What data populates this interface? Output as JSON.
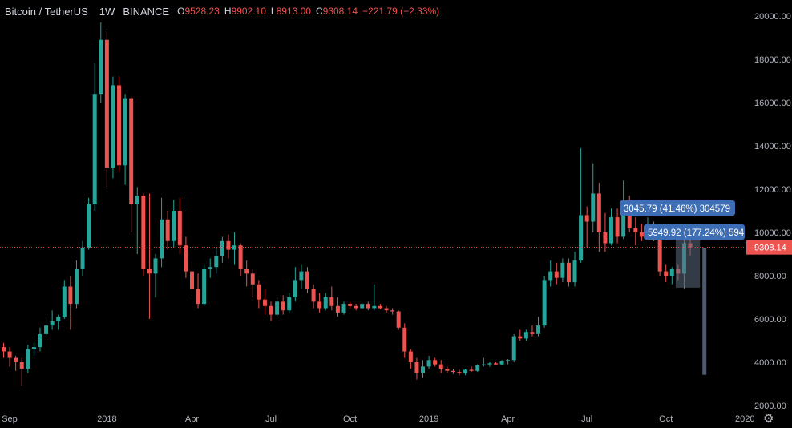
{
  "header": {
    "symbol": "Bitcoin / TetherUS",
    "interval": "1W",
    "exchange": "BINANCE",
    "open_label": "O",
    "open": "9528.23",
    "high_label": "H",
    "high": "9902.10",
    "low_label": "L",
    "low": "8913.00",
    "close_label": "C",
    "close": "9308.14",
    "change": "−221.79 (−2.33%)"
  },
  "colors": {
    "up": "#26a69a",
    "down": "#ef5350",
    "price_line": "#ef5350",
    "measure_label": "#3d6eb5",
    "measure_box": "#5b6b80",
    "axis_text": "#b2b5be"
  },
  "chart_data": {
    "type": "candlestick",
    "ylim": [
      2000,
      20000
    ],
    "y_ticks": [
      "2000.00",
      "4000.00",
      "6000.00",
      "8000.00",
      "10000.00",
      "12000.00",
      "14000.00",
      "16000.00",
      "18000.00",
      "20000.00"
    ],
    "x_ticks": [
      {
        "label": "Sep",
        "index": 0
      },
      {
        "label": "2018",
        "index": 17
      },
      {
        "label": "Apr",
        "index": 31
      },
      {
        "label": "Jul",
        "index": 44
      },
      {
        "label": "Oct",
        "index": 57
      },
      {
        "label": "2019",
        "index": 70
      },
      {
        "label": "Apr",
        "index": 83
      },
      {
        "label": "Jul",
        "index": 96
      },
      {
        "label": "Oct",
        "index": 109
      },
      {
        "label": "2020",
        "index": 122
      }
    ],
    "current_price": "9308.14",
    "candles": [
      [
        4700,
        4900,
        4200,
        4500
      ],
      [
        4500,
        4700,
        3800,
        4200
      ],
      [
        4200,
        4300,
        3600,
        4000
      ],
      [
        4000,
        4200,
        2900,
        3700
      ],
      [
        3700,
        4800,
        3500,
        4600
      ],
      [
        4600,
        4900,
        4300,
        4700
      ],
      [
        4700,
        5600,
        4500,
        5300
      ],
      [
        5300,
        6100,
        5200,
        5700
      ],
      [
        5700,
        6400,
        5500,
        5900
      ],
      [
        5900,
        6200,
        5500,
        6100
      ],
      [
        6100,
        7800,
        6000,
        7500
      ],
      [
        7500,
        8000,
        5500,
        6700
      ],
      [
        6700,
        8700,
        6500,
        8300
      ],
      [
        8300,
        9600,
        8000,
        9300
      ],
      [
        9300,
        11600,
        9200,
        11300
      ],
      [
        11300,
        17800,
        11000,
        16400
      ],
      [
        16400,
        19700,
        16000,
        18900
      ],
      [
        18900,
        19300,
        12000,
        13000
      ],
      [
        13000,
        17200,
        12500,
        16800
      ],
      [
        16800,
        17200,
        12800,
        13100
      ],
      [
        13100,
        16400,
        12200,
        16200
      ],
      [
        16200,
        16300,
        10000,
        11300
      ],
      [
        11300,
        12100,
        9000,
        11700
      ],
      [
        11700,
        11800,
        8000,
        8300
      ],
      [
        8300,
        11800,
        6000,
        8100
      ],
      [
        8100,
        9000,
        7000,
        8800
      ],
      [
        8800,
        11600,
        8400,
        10600
      ],
      [
        10600,
        11000,
        9200,
        9600
      ],
      [
        9600,
        11500,
        9300,
        11000
      ],
      [
        11000,
        11600,
        9000,
        9400
      ],
      [
        9400,
        9800,
        7900,
        8200
      ],
      [
        8200,
        8600,
        7100,
        7400
      ],
      [
        7400,
        8100,
        6500,
        6700
      ],
      [
        6700,
        8500,
        6600,
        8300
      ],
      [
        8300,
        8800,
        7900,
        8400
      ],
      [
        8400,
        9300,
        8100,
        8900
      ],
      [
        8900,
        9800,
        8600,
        9600
      ],
      [
        9600,
        9900,
        8800,
        9200
      ],
      [
        9200,
        10000,
        8500,
        9400
      ],
      [
        9400,
        9500,
        8000,
        8300
      ],
      [
        8300,
        8700,
        7500,
        8100
      ],
      [
        8100,
        8300,
        7000,
        7600
      ],
      [
        7600,
        7800,
        6500,
        6900
      ],
      [
        6900,
        7400,
        6200,
        6600
      ],
      [
        6600,
        6800,
        5900,
        6200
      ],
      [
        6200,
        7000,
        6100,
        6800
      ],
      [
        6800,
        7100,
        6200,
        6400
      ],
      [
        6400,
        7200,
        6300,
        7000
      ],
      [
        7000,
        8400,
        6800,
        7800
      ],
      [
        7800,
        8500,
        7400,
        8200
      ],
      [
        8200,
        8400,
        7200,
        7400
      ],
      [
        7400,
        7600,
        6500,
        6800
      ],
      [
        6800,
        7200,
        6300,
        6500
      ],
      [
        6500,
        7200,
        6400,
        7000
      ],
      [
        7000,
        7500,
        6400,
        6600
      ],
      [
        6600,
        7000,
        6100,
        6300
      ],
      [
        6300,
        6800,
        6200,
        6700
      ],
      [
        6700,
        6800,
        6500,
        6600
      ],
      [
        6600,
        6700,
        6400,
        6500
      ],
      [
        6500,
        6750,
        6450,
        6700
      ],
      [
        6700,
        6800,
        6400,
        6500
      ],
      [
        6500,
        7600,
        6400,
        6600
      ],
      [
        6600,
        6700,
        6450,
        6500
      ],
      [
        6500,
        6600,
        6300,
        6400
      ],
      [
        6400,
        6500,
        6200,
        6350
      ],
      [
        6350,
        6400,
        5500,
        5600
      ],
      [
        5600,
        5800,
        4200,
        4500
      ],
      [
        4500,
        4600,
        3700,
        4000
      ],
      [
        4000,
        4200,
        3200,
        3500
      ],
      [
        3500,
        4100,
        3300,
        3800
      ],
      [
        3800,
        4300,
        3700,
        4100
      ],
      [
        4100,
        4200,
        3800,
        3900
      ],
      [
        3900,
        4100,
        3500,
        3700
      ],
      [
        3700,
        3800,
        3500,
        3600
      ],
      [
        3600,
        3700,
        3450,
        3550
      ],
      [
        3550,
        3650,
        3400,
        3500
      ],
      [
        3500,
        3700,
        3400,
        3650
      ],
      [
        3650,
        3800,
        3550,
        3600
      ],
      [
        3600,
        3900,
        3550,
        3850
      ],
      [
        3850,
        4200,
        3800,
        3900
      ],
      [
        3900,
        4000,
        3800,
        3950
      ],
      [
        3950,
        4000,
        3850,
        3900
      ],
      [
        3900,
        4100,
        3850,
        4050
      ],
      [
        4050,
        4150,
        3900,
        4100
      ],
      [
        4100,
        5300,
        4000,
        5200
      ],
      [
        5200,
        5500,
        5000,
        5100
      ],
      [
        5100,
        5500,
        5000,
        5400
      ],
      [
        5400,
        5700,
        5200,
        5300
      ],
      [
        5300,
        6100,
        5200,
        5700
      ],
      [
        5700,
        8000,
        5600,
        7800
      ],
      [
        7800,
        8700,
        7500,
        8200
      ],
      [
        8200,
        8600,
        7600,
        7900
      ],
      [
        7900,
        8800,
        7700,
        8600
      ],
      [
        8600,
        8800,
        7500,
        7700
      ],
      [
        7700,
        9100,
        7500,
        8700
      ],
      [
        8700,
        13900,
        8600,
        10800
      ],
      [
        10800,
        11200,
        9300,
        10500
      ],
      [
        10500,
        13200,
        10000,
        11800
      ],
      [
        11800,
        12300,
        9100,
        10000
      ],
      [
        10000,
        10900,
        9100,
        9500
      ],
      [
        9500,
        11100,
        9400,
        10700
      ],
      [
        10700,
        11100,
        9500,
        9800
      ],
      [
        9800,
        12400,
        9700,
        11200
      ],
      [
        11200,
        11700,
        10000,
        10200
      ],
      [
        10200,
        10700,
        9400,
        10000
      ],
      [
        10000,
        10400,
        9600,
        9800
      ],
      [
        9800,
        10700,
        9700,
        10200
      ],
      [
        10200,
        10500,
        9600,
        9700
      ],
      [
        9700,
        9800,
        8000,
        8200
      ],
      [
        8200,
        8500,
        7700,
        8000
      ],
      [
        8000,
        8400,
        7600,
        8300
      ],
      [
        8300,
        8500,
        7800,
        8100
      ],
      [
        8100,
        10300,
        7400,
        9500
      ],
      [
        9500,
        9902,
        8913,
        9308
      ]
    ],
    "measures": [
      {
        "label": "3045.79 (41.46%) 304579"
      },
      {
        "label": "5949.92 (177.24%) 594"
      }
    ]
  }
}
